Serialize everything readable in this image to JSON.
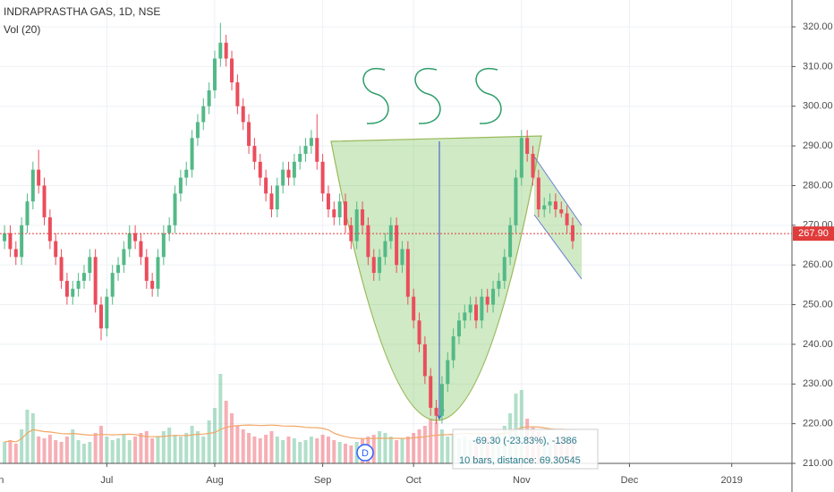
{
  "chart_data": {
    "type": "candlestick",
    "title": "INDRAPRASTHA GAS, 1D, NSE",
    "indicator": "Vol (20)",
    "up_color": "#53b987",
    "down_color": "#eb4d5c",
    "grid": true,
    "ylim": [
      210,
      320
    ],
    "yticks": [
      {
        "value": 210,
        "label": "210.00"
      },
      {
        "value": 220,
        "label": "220.00"
      },
      {
        "value": 230,
        "label": "230.00"
      },
      {
        "value": 240,
        "label": "240.00"
      },
      {
        "value": 250,
        "label": "250.00"
      },
      {
        "value": 260,
        "label": "260.00"
      },
      {
        "value": 270,
        "label": "270.00"
      },
      {
        "value": 280,
        "label": "280.00"
      },
      {
        "value": 290,
        "label": "290.00"
      },
      {
        "value": 300,
        "label": "300.00"
      },
      {
        "value": 310,
        "label": "310.00"
      },
      {
        "value": 320,
        "label": "320.00"
      }
    ],
    "xlim": [
      -0.8,
      138.6
    ],
    "xticks": [
      {
        "value": -1.5,
        "label": "Jun"
      },
      {
        "value": 18,
        "label": "Jul"
      },
      {
        "value": 37,
        "label": "Aug"
      },
      {
        "value": 56,
        "label": "Sep"
      },
      {
        "value": 72,
        "label": "Oct"
      },
      {
        "value": 91,
        "label": "Nov"
      },
      {
        "value": 110,
        "label": "Dec"
      },
      {
        "value": 128,
        "label": "2019"
      }
    ],
    "open": [
      266,
      268,
      264,
      262,
      270,
      276,
      284,
      280,
      272,
      266,
      262,
      256,
      252,
      254,
      256,
      258,
      262,
      250,
      244,
      252,
      258,
      260,
      264,
      268,
      266,
      262,
      256,
      254,
      262,
      268,
      270,
      278,
      282,
      284,
      292,
      296,
      300,
      304,
      312,
      316,
      312,
      306,
      300,
      296,
      290,
      286,
      282,
      278,
      274,
      280,
      284,
      282,
      286,
      288,
      290,
      292,
      286,
      278,
      274,
      272,
      276,
      270,
      266,
      274,
      270,
      262,
      258,
      262,
      266,
      270,
      260,
      264,
      252,
      246,
      240,
      232,
      224,
      222,
      230,
      236,
      242,
      246,
      248,
      250,
      246,
      252,
      250,
      254,
      256,
      262,
      270,
      282,
      292,
      288,
      282,
      274,
      275,
      276,
      274,
      273,
      270
    ],
    "high": [
      270,
      270,
      266,
      272,
      278,
      286,
      289,
      282,
      274,
      268,
      264,
      258,
      256,
      258,
      260,
      264,
      264,
      252,
      254,
      260,
      262,
      266,
      270,
      270,
      268,
      264,
      258,
      264,
      270,
      272,
      280,
      284,
      286,
      294,
      298,
      302,
      306,
      314,
      321,
      318,
      314,
      308,
      302,
      298,
      292,
      288,
      284,
      280,
      282,
      286,
      286,
      288,
      290,
      292,
      294,
      298,
      288,
      280,
      276,
      278,
      278,
      272,
      276,
      276,
      272,
      264,
      264,
      268,
      272,
      272,
      266,
      266,
      254,
      248,
      242,
      234,
      226,
      232,
      238,
      244,
      248,
      250,
      252,
      252,
      254,
      254,
      256,
      258,
      264,
      272,
      284,
      294,
      294,
      290,
      284,
      277,
      278,
      278,
      276,
      275,
      272
    ],
    "low": [
      264,
      262,
      260,
      260,
      268,
      274,
      278,
      270,
      264,
      260,
      254,
      250,
      250,
      252,
      254,
      256,
      248,
      241,
      242,
      250,
      256,
      258,
      262,
      264,
      260,
      254,
      252,
      252,
      260,
      266,
      268,
      276,
      280,
      282,
      290,
      294,
      298,
      302,
      310,
      310,
      304,
      298,
      294,
      288,
      284,
      280,
      276,
      272,
      272,
      278,
      280,
      280,
      284,
      286,
      288,
      284,
      276,
      272,
      270,
      270,
      268,
      264,
      264,
      268,
      260,
      256,
      256,
      260,
      264,
      258,
      258,
      250,
      244,
      238,
      230,
      222,
      220,
      220,
      228,
      234,
      240,
      244,
      246,
      244,
      244,
      248,
      248,
      252,
      254,
      260,
      268,
      280,
      286,
      280,
      272,
      272,
      273,
      272,
      272,
      268,
      264
    ],
    "close": [
      268,
      264,
      262,
      270,
      276,
      284,
      280,
      272,
      266,
      262,
      256,
      252,
      254,
      256,
      258,
      262,
      250,
      244,
      252,
      258,
      260,
      264,
      268,
      266,
      262,
      256,
      254,
      262,
      268,
      270,
      278,
      282,
      284,
      292,
      296,
      300,
      304,
      312,
      316,
      312,
      306,
      300,
      296,
      290,
      286,
      282,
      278,
      274,
      280,
      284,
      282,
      286,
      288,
      290,
      292,
      286,
      278,
      274,
      272,
      276,
      270,
      266,
      274,
      270,
      262,
      258,
      262,
      266,
      270,
      260,
      264,
      252,
      246,
      240,
      232,
      224,
      222,
      230,
      236,
      242,
      246,
      248,
      250,
      246,
      252,
      250,
      254,
      256,
      262,
      270,
      282,
      292,
      288,
      282,
      274,
      275,
      276,
      274,
      273,
      270,
      266
    ],
    "volume": [
      240,
      260,
      220,
      380,
      600,
      560,
      300,
      280,
      320,
      260,
      240,
      300,
      380,
      260,
      220,
      240,
      340,
      420,
      300,
      260,
      280,
      320,
      260,
      300,
      340,
      360,
      280,
      300,
      360,
      400,
      320,
      300,
      340,
      420,
      360,
      300,
      480,
      620,
      1000,
      700,
      560,
      420,
      380,
      340,
      300,
      280,
      320,
      360,
      300,
      260,
      300,
      280,
      240,
      260,
      300,
      280,
      320,
      300,
      260,
      240,
      220,
      200,
      240,
      280,
      300,
      320,
      360,
      340,
      300,
      260,
      280,
      300,
      340,
      380,
      420,
      500,
      460,
      380,
      300,
      320,
      280,
      300,
      260,
      240,
      280,
      300,
      320,
      340,
      420,
      560,
      780,
      820,
      500,
      400,
      360,
      300,
      280,
      260,
      300,
      280,
      260
    ],
    "last_price": {
      "value": 267.9,
      "label": "267.90"
    },
    "annotations": [
      "-69.30 (-23.83%), -1386",
      "10 bars, distance: 69.30545",
      "D"
    ]
  }
}
